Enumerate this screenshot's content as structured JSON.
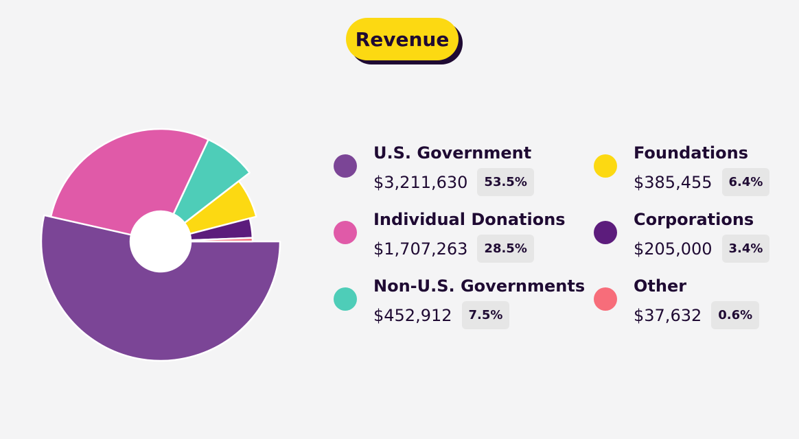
{
  "title": "Revenue",
  "chart_data": {
    "type": "pie",
    "title": "Revenue",
    "categories": [
      "U.S. Government",
      "Individual Donations",
      "Non-U.S. Governments",
      "Foundations",
      "Corporations",
      "Other"
    ],
    "values": [
      3211630,
      1707263,
      452912,
      385455,
      205000,
      37632
    ],
    "amount_labels": [
      "$3,211,630",
      "$1,707,263",
      "$452,912",
      "$385,455",
      "$205,000",
      "$37,632"
    ],
    "percent_labels": [
      "53.5%",
      "28.5%",
      "7.5%",
      "6.4%",
      "3.4%",
      "0.6%"
    ],
    "percents": [
      53.5,
      28.5,
      7.5,
      6.4,
      3.4,
      0.6
    ],
    "colors": [
      "#7b4596",
      "#e05aa8",
      "#4ecdb8",
      "#fcd912",
      "#5c1c7c",
      "#f76d7a"
    ],
    "legend_position": "right"
  }
}
